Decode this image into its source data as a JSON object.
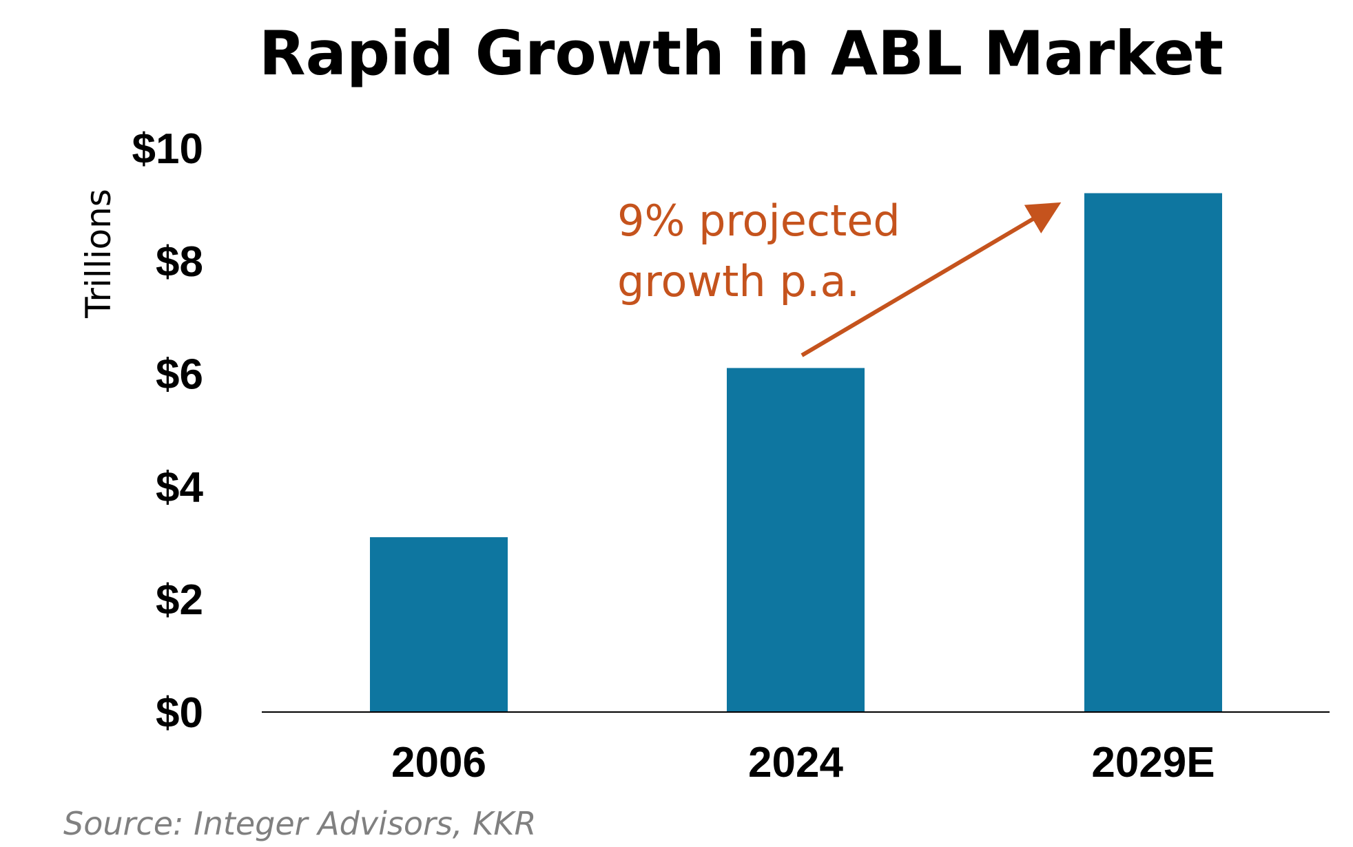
{
  "chart_data": {
    "type": "bar",
    "title": "Rapid Growth in ABL Market",
    "ylabel": "Trillions",
    "xlabel": "",
    "categories": [
      "2006",
      "2024",
      "2029E"
    ],
    "values": [
      3.1,
      6.1,
      9.2
    ],
    "ylim": [
      0,
      10
    ],
    "yticks": [
      0,
      2,
      4,
      6,
      8,
      10
    ],
    "ytick_labels": [
      "$0",
      "$2",
      "$4",
      "$6",
      "$8",
      "$10"
    ],
    "grid": false,
    "bar_color": "#0E76A0",
    "annotation": {
      "lines": [
        "9% projected",
        "growth p.a."
      ],
      "color": "#C5531D",
      "arrow_from_category": "2024",
      "arrow_to_category": "2029E"
    },
    "source": "Source: Integer Advisors, KKR"
  }
}
